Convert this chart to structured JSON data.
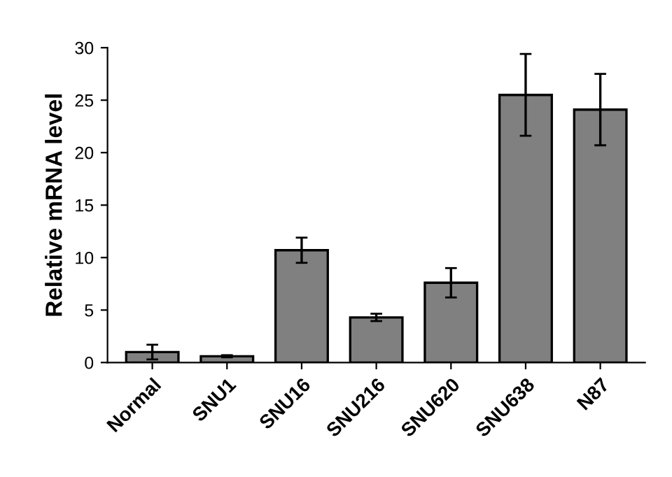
{
  "chart_data": {
    "type": "bar",
    "ylabel": "Relative mRNA level",
    "categories": [
      "Normal",
      "SNU1",
      "SNU16",
      "SNU216",
      "SNU620",
      "SNU638",
      "N87"
    ],
    "values": [
      1.0,
      0.6,
      10.7,
      4.3,
      7.6,
      25.5,
      24.1
    ],
    "errors": [
      0.7,
      0.1,
      1.2,
      0.35,
      1.4,
      3.9,
      3.4
    ],
    "color": "#808080",
    "ylim": [
      0,
      30
    ],
    "yticks": [
      0,
      5,
      10,
      15,
      20,
      25,
      30
    ],
    "grid": false
  }
}
